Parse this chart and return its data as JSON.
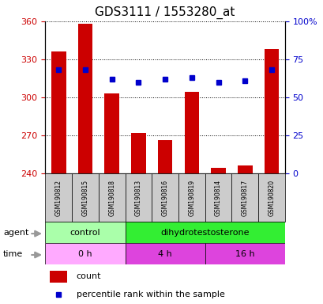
{
  "title": "GDS3111 / 1553280_at",
  "samples": [
    "GSM190812",
    "GSM190815",
    "GSM190818",
    "GSM190813",
    "GSM190816",
    "GSM190819",
    "GSM190814",
    "GSM190817",
    "GSM190820"
  ],
  "count_values": [
    336,
    358,
    303,
    272,
    266,
    304,
    244,
    246,
    338
  ],
  "percentile_values": [
    68,
    68,
    62,
    60,
    62,
    63,
    60,
    61,
    68
  ],
  "ymin": 240,
  "ymax": 360,
  "yticks": [
    240,
    270,
    300,
    330,
    360
  ],
  "y2min": 0,
  "y2max": 100,
  "y2ticks": [
    0,
    25,
    50,
    75,
    100
  ],
  "bar_color": "#cc0000",
  "dot_color": "#0000cc",
  "bar_width": 0.55,
  "agent_labels": [
    {
      "text": "control",
      "span": [
        0,
        3
      ],
      "color": "#aaffaa"
    },
    {
      "text": "dihydrotestosterone",
      "span": [
        3,
        9
      ],
      "color": "#33ee33"
    }
  ],
  "time_labels": [
    {
      "text": "0 h",
      "span": [
        0,
        3
      ],
      "color": "#ffaaff"
    },
    {
      "text": "4 h",
      "span": [
        3,
        6
      ],
      "color": "#dd44dd"
    },
    {
      "text": "16 h",
      "span": [
        6,
        9
      ],
      "color": "#dd44dd"
    }
  ],
  "legend_count_color": "#cc0000",
  "legend_dot_color": "#0000cc",
  "legend_count_label": "count",
  "legend_dot_label": "percentile rank within the sample",
  "xlabel_agent": "agent",
  "xlabel_time": "time",
  "tick_label_color_left": "#cc0000",
  "tick_label_color_right": "#0000cc",
  "sample_bg_color": "#cccccc",
  "arrow_color": "#999999"
}
